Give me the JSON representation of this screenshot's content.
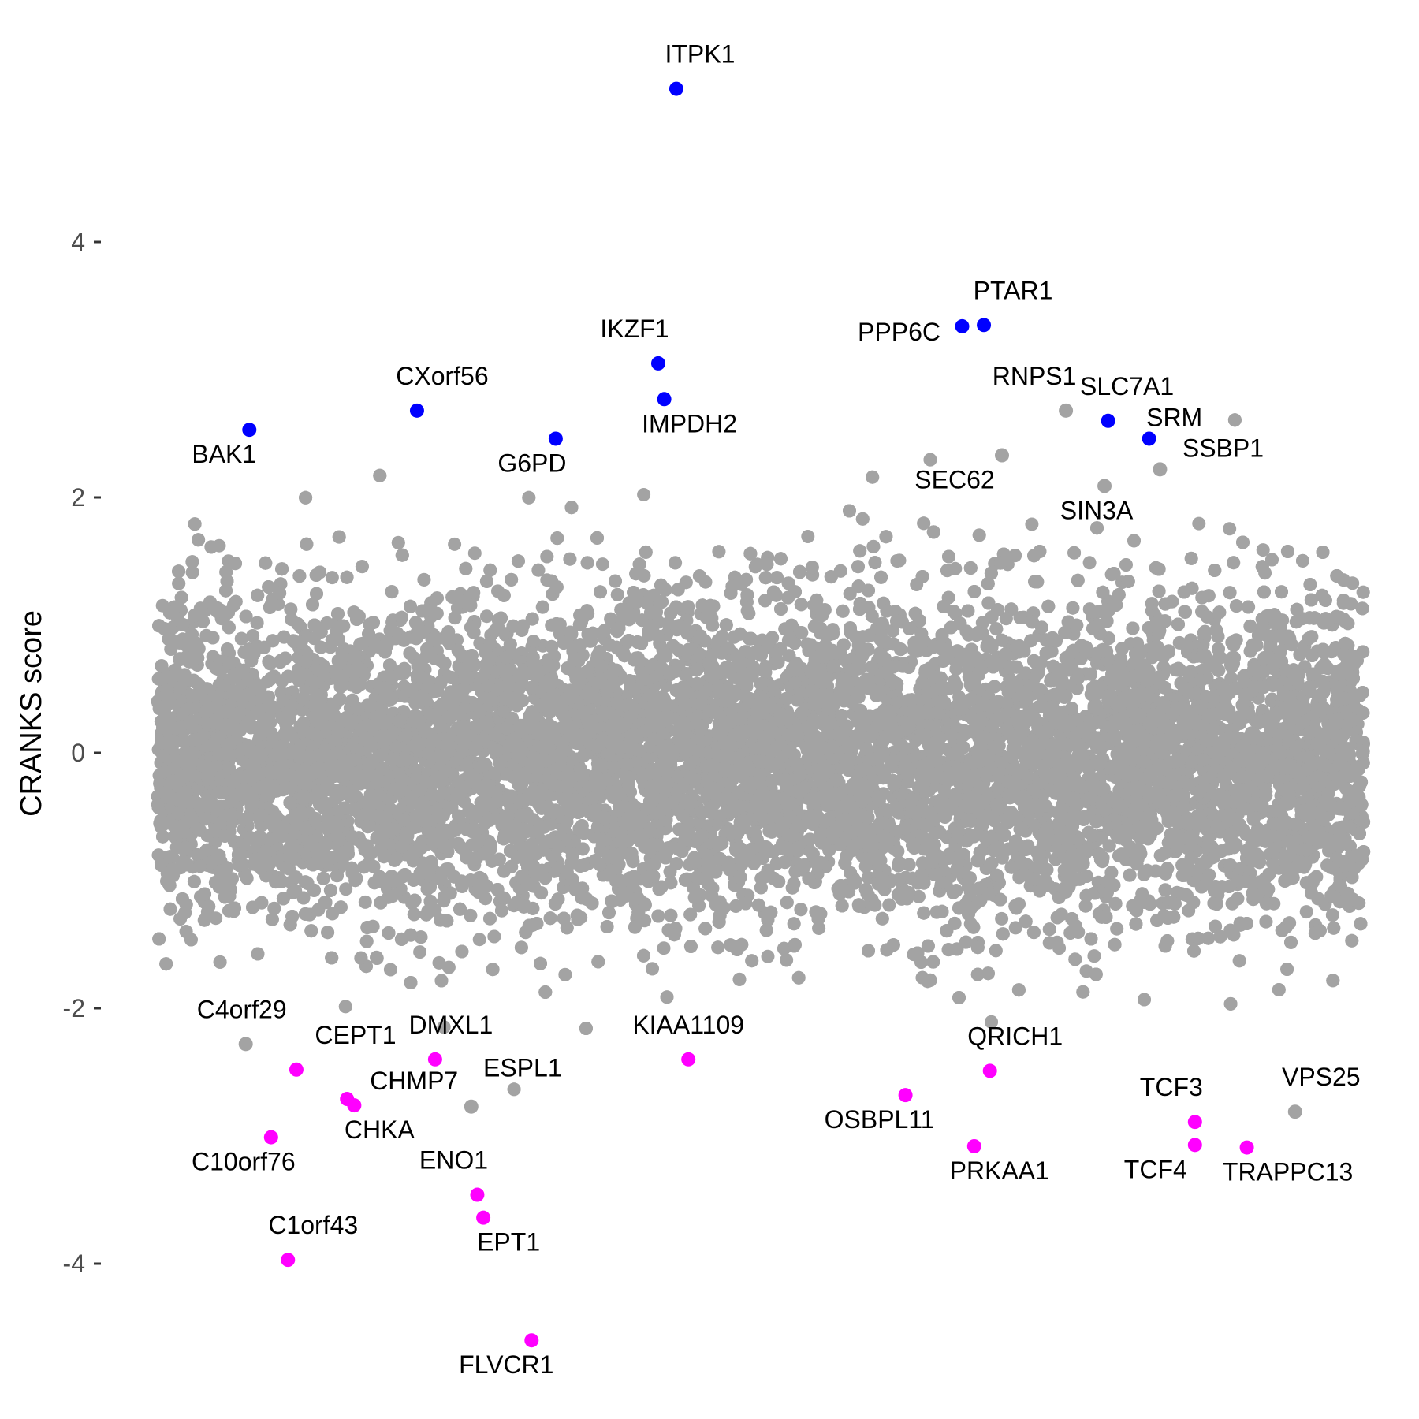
{
  "chart_data": {
    "type": "scatter",
    "ylabel": "CRANKS score",
    "xlabel": "",
    "ylim": [
      -4.7,
      5.3
    ],
    "y_ticks": [
      -4,
      -2,
      0,
      2,
      4
    ],
    "y_tick_labels": [
      "-4",
      "-2",
      "0",
      "2",
      "4"
    ],
    "x_axis_visible": false,
    "grid": false,
    "legend": "none",
    "colors": {
      "background_points": "#a3a3a3",
      "positive_hits": "#0000ff",
      "negative_hits": "#ff00ff"
    },
    "background_cloud": {
      "description_count": 18000,
      "y_core_range": [
        -0.9,
        0.9
      ],
      "y_extent": [
        -2.8,
        2.9
      ]
    },
    "highlighted": [
      {
        "gene": "ITPK1",
        "x": 0.43,
        "y": 5.2,
        "group": "positive"
      },
      {
        "gene": "PTAR1",
        "x": 0.685,
        "y": 3.35,
        "group": "positive"
      },
      {
        "gene": "PPP6C",
        "x": 0.667,
        "y": 3.34,
        "group": "positive"
      },
      {
        "gene": "IKZF1",
        "x": 0.415,
        "y": 3.05,
        "group": "positive"
      },
      {
        "gene": "IMPDH2",
        "x": 0.42,
        "y": 2.77,
        "group": "positive"
      },
      {
        "gene": "CXorf56",
        "x": 0.215,
        "y": 2.68,
        "group": "positive"
      },
      {
        "gene": "SLC7A1",
        "x": 0.788,
        "y": 2.6,
        "group": "positive"
      },
      {
        "gene": "BAK1",
        "x": 0.076,
        "y": 2.53,
        "group": "positive"
      },
      {
        "gene": "G6PD",
        "x": 0.33,
        "y": 2.46,
        "group": "positive"
      },
      {
        "gene": "SRM",
        "x": 0.822,
        "y": 2.46,
        "group": "positive"
      },
      {
        "gene": "DMXL1",
        "x": 0.23,
        "y": -2.4,
        "group": "negative"
      },
      {
        "gene": "KIAA1109",
        "x": 0.44,
        "y": -2.4,
        "group": "negative"
      },
      {
        "gene": "CEPT1",
        "x": 0.115,
        "y": -2.48,
        "group": "negative"
      },
      {
        "gene": "QRICH1",
        "x": 0.69,
        "y": -2.49,
        "group": "negative"
      },
      {
        "gene": "OSBPL11",
        "x": 0.62,
        "y": -2.68,
        "group": "negative"
      },
      {
        "gene": "CHMP7",
        "x": 0.157,
        "y": -2.71,
        "group": "negative"
      },
      {
        "gene": "CHKA",
        "x": 0.163,
        "y": -2.76,
        "group": "negative"
      },
      {
        "gene": "TCF3",
        "x": 0.86,
        "y": -2.89,
        "group": "negative"
      },
      {
        "gene": "C10orf76",
        "x": 0.094,
        "y": -3.01,
        "group": "negative"
      },
      {
        "gene": "TCF4",
        "x": 0.86,
        "y": -3.07,
        "group": "negative"
      },
      {
        "gene": "PRKAA1",
        "x": 0.677,
        "y": -3.08,
        "group": "negative"
      },
      {
        "gene": "TRAPPC13",
        "x": 0.903,
        "y": -3.09,
        "group": "negative"
      },
      {
        "gene": "ENO1",
        "x": 0.265,
        "y": -3.46,
        "group": "negative"
      },
      {
        "gene": "EPT1",
        "x": 0.27,
        "y": -3.64,
        "group": "negative"
      },
      {
        "gene": "C1orf43",
        "x": 0.108,
        "y": -3.97,
        "group": "negative"
      },
      {
        "gene": "FLVCR1",
        "x": 0.31,
        "y": -4.6,
        "group": "negative"
      }
    ],
    "labeled_background": [
      {
        "gene": "RNPS1",
        "x": 0.753,
        "y": 2.68
      },
      {
        "gene": "SEC62",
        "x": 0.7,
        "y": 2.33
      },
      {
        "gene": "SIN3A",
        "x": 0.785,
        "y": 2.09
      },
      {
        "gene": "SSBP1",
        "x": 0.831,
        "y": 2.22
      },
      {
        "gene": "C4orf29",
        "x": 0.073,
        "y": -2.28
      },
      {
        "gene": "ESPL1",
        "x": 0.26,
        "y": -2.77
      },
      {
        "gene": "VPS25",
        "x": 0.943,
        "y": -2.81
      }
    ]
  }
}
